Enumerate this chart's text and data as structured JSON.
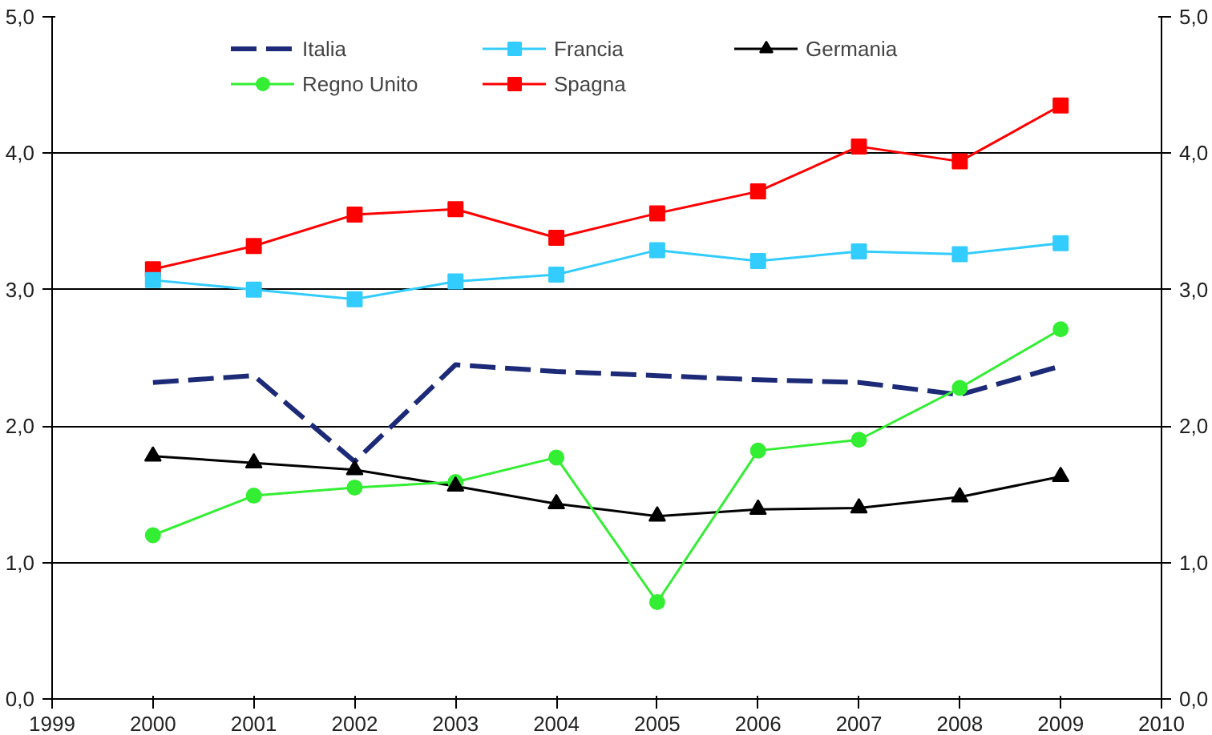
{
  "chart_data": {
    "type": "line",
    "x": [
      2000,
      2001,
      2002,
      2003,
      2004,
      2005,
      2006,
      2007,
      2008,
      2009
    ],
    "series": [
      {
        "name": "Italia",
        "color": "#1c2a78",
        "marker": "none",
        "line_style": "dashed",
        "values": [
          2.32,
          2.37,
          1.74,
          2.45,
          2.4,
          2.37,
          2.34,
          2.32,
          2.23,
          2.44
        ]
      },
      {
        "name": "Francia",
        "color": "#33ccff",
        "marker": "square",
        "values": [
          3.07,
          3.0,
          2.93,
          3.06,
          3.11,
          3.29,
          3.21,
          3.28,
          3.26,
          3.34
        ]
      },
      {
        "name": "Germania",
        "color": "#000000",
        "marker": "triangle",
        "values": [
          1.78,
          1.73,
          1.68,
          1.56,
          1.43,
          1.34,
          1.39,
          1.4,
          1.48,
          1.63
        ]
      },
      {
        "name": "Regno Unito",
        "color": "#33ee33",
        "marker": "circle",
        "values": [
          1.2,
          1.49,
          1.55,
          1.59,
          1.77,
          0.71,
          1.82,
          1.9,
          2.28,
          2.71
        ]
      },
      {
        "name": "Spagna",
        "color": "#ff0000",
        "marker": "square",
        "values": [
          3.15,
          3.32,
          3.55,
          3.59,
          3.38,
          3.56,
          3.72,
          4.05,
          3.94,
          4.35
        ]
      }
    ],
    "xlim": [
      1999,
      2010
    ],
    "xticks": [
      1999,
      2000,
      2001,
      2002,
      2003,
      2004,
      2005,
      2006,
      2007,
      2008,
      2009,
      2010
    ],
    "ylim": [
      0,
      5
    ],
    "yticks": [
      {
        "value": 0,
        "label": "0,0"
      },
      {
        "value": 1,
        "label": "1,0"
      },
      {
        "value": 2,
        "label": "2,0"
      },
      {
        "value": 3,
        "label": "3,0"
      },
      {
        "value": 4,
        "label": "4,0"
      },
      {
        "value": 5,
        "label": "5,0"
      }
    ],
    "y2lim": [
      0,
      5
    ],
    "y2ticks": [
      {
        "value": 0,
        "label": "0,0"
      },
      {
        "value": 1,
        "label": "1,0"
      },
      {
        "value": 2,
        "label": "2,0"
      },
      {
        "value": 3,
        "label": "3,0"
      },
      {
        "value": 4,
        "label": "4,0"
      },
      {
        "value": 5,
        "label": "5,0"
      }
    ],
    "grid": "y",
    "legend": "top"
  }
}
